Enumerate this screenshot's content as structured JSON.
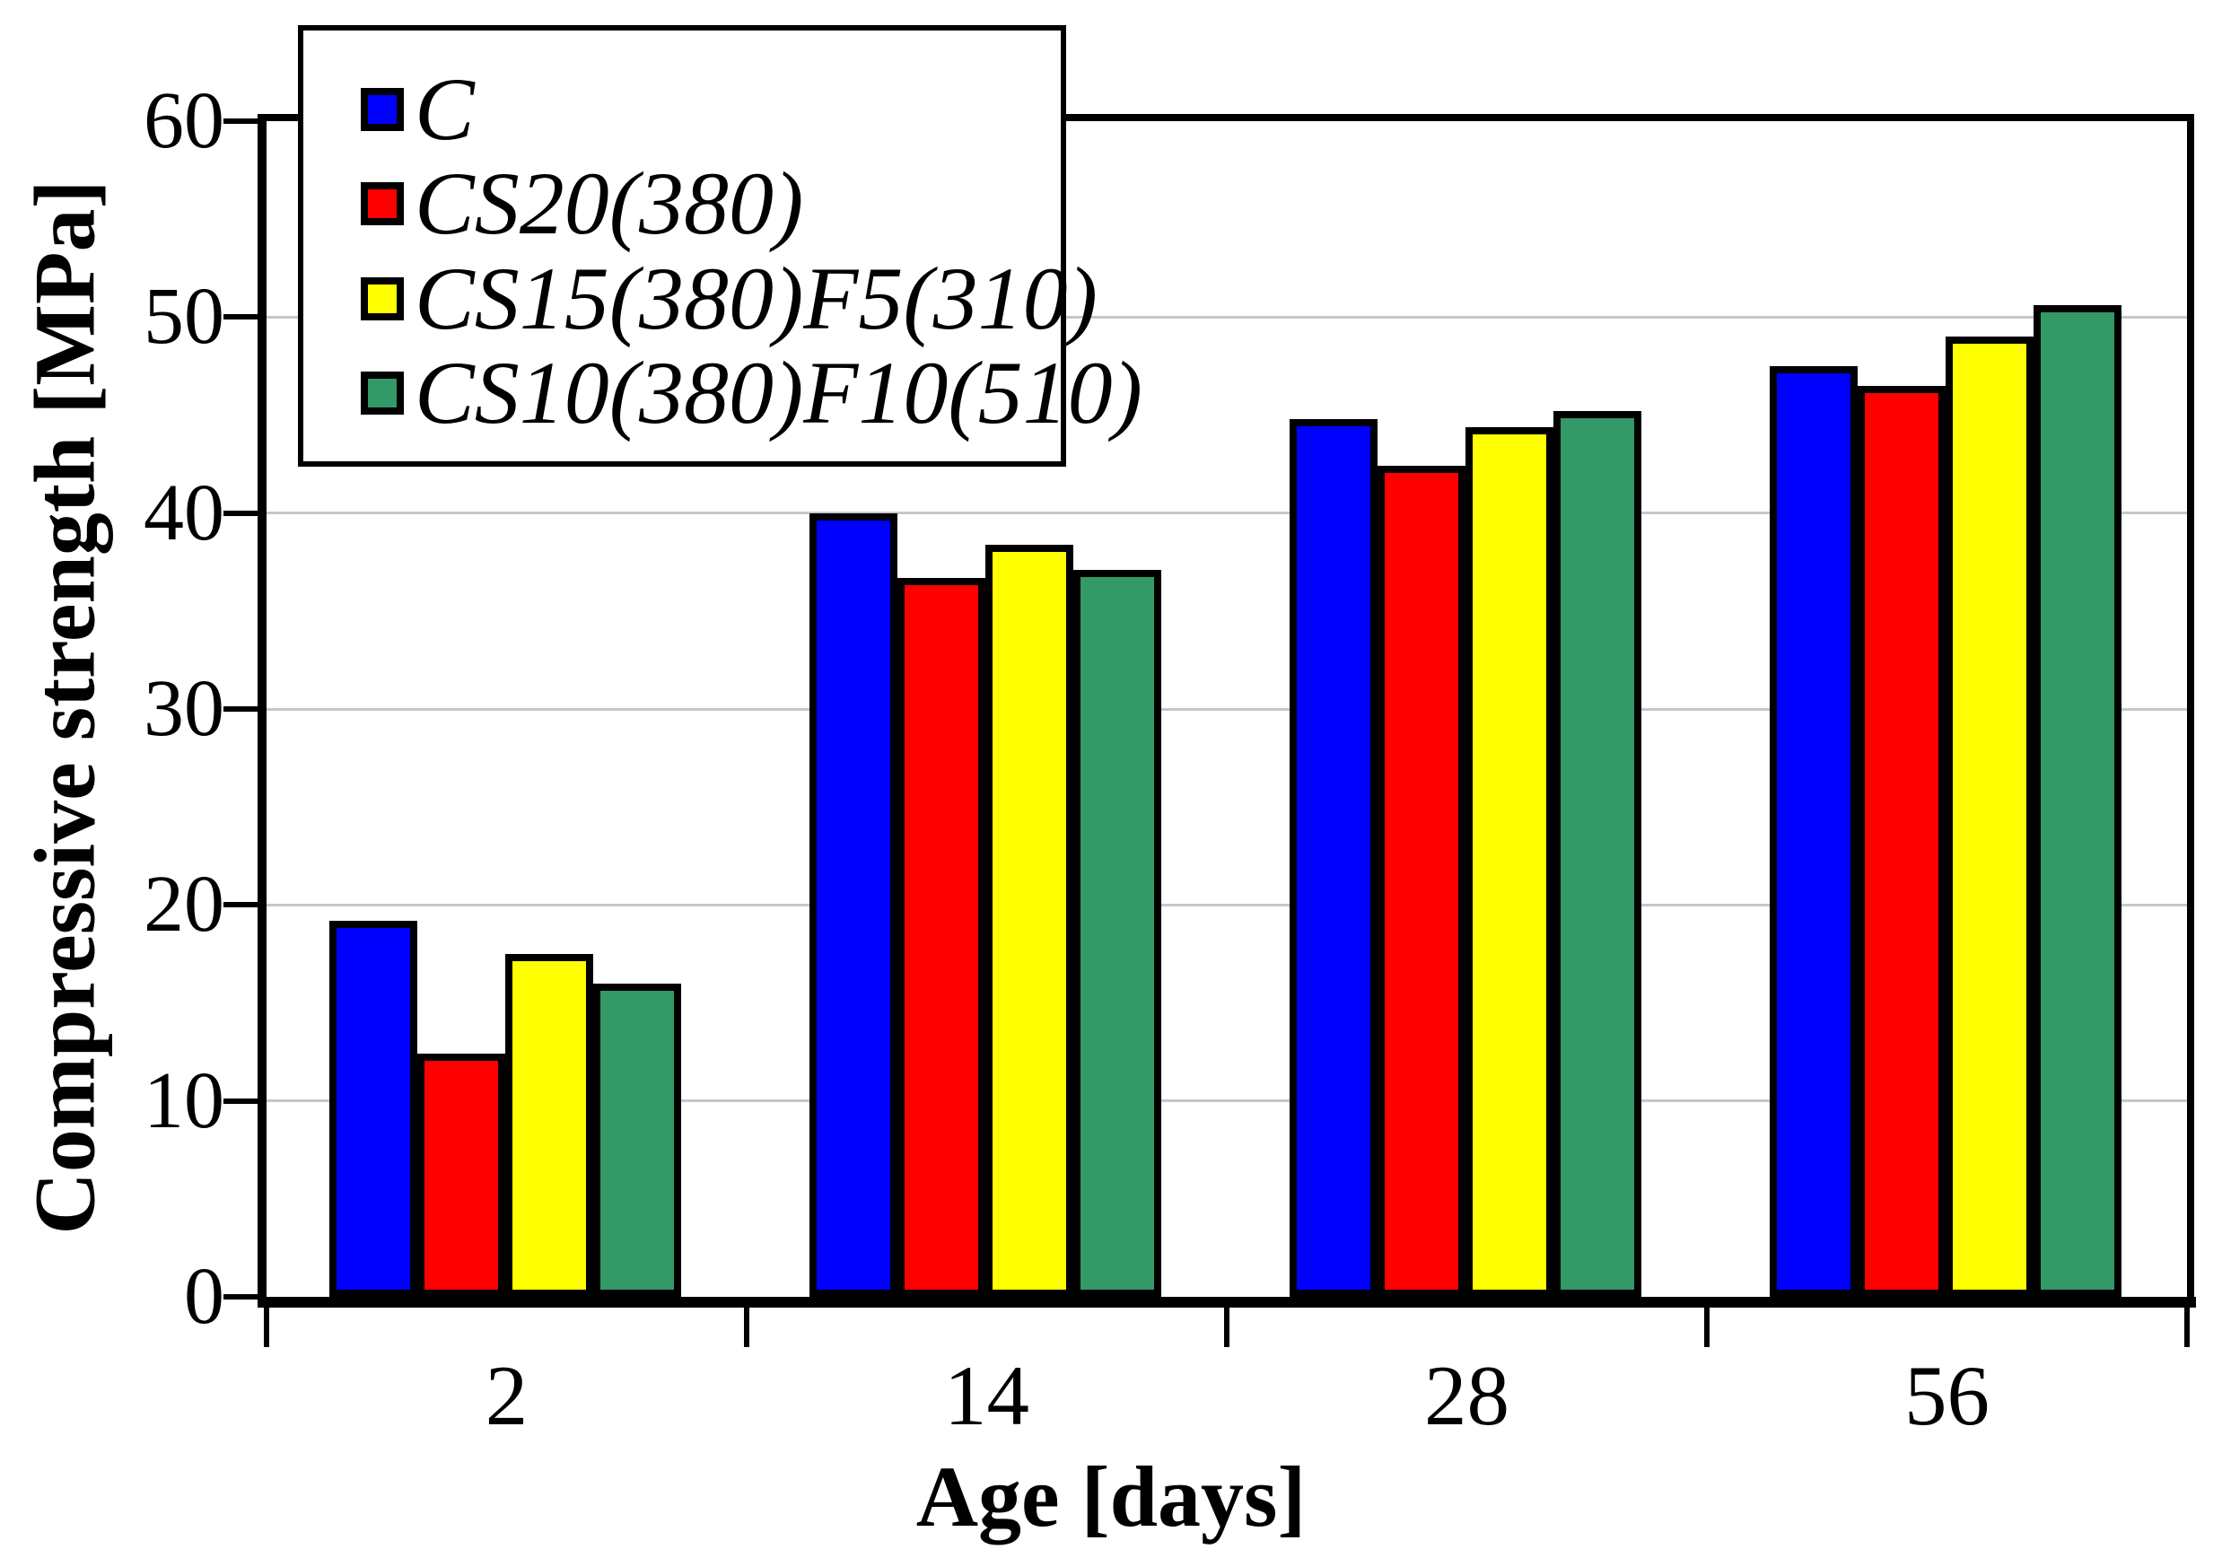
{
  "figure": {
    "background_color": "#ffffff",
    "text_color": "#000000"
  },
  "chart_data": {
    "type": "bar",
    "title": "",
    "xlabel": "Age [days]",
    "ylabel": "Compressive strength [MPa]",
    "categories": [
      "2",
      "14",
      "28",
      "56"
    ],
    "series": [
      {
        "name": "C",
        "color": "#0000FF",
        "values": [
          19.2,
          40.0,
          44.8,
          47.5
        ]
      },
      {
        "name": "CS20(380)",
        "color": "#FF0000",
        "values": [
          12.4,
          36.7,
          42.4,
          46.5
        ]
      },
      {
        "name": "CS15(380)F5(310)",
        "color": "#FFFF00",
        "values": [
          17.5,
          38.4,
          44.4,
          49.0
        ]
      },
      {
        "name": "CS10(380)F10(510)",
        "color": "#339966",
        "values": [
          16.0,
          37.1,
          45.2,
          50.6
        ]
      }
    ],
    "ylim": [
      0,
      60
    ],
    "ytick_step": 10,
    "yticks": [
      "0",
      "10",
      "20",
      "30",
      "40",
      "50",
      "60"
    ],
    "grid": true,
    "gridline_color": "#c3c8cd",
    "bar_border_color": "#000000",
    "legend_position": "top-left",
    "legend_border_color": "#000000"
  }
}
